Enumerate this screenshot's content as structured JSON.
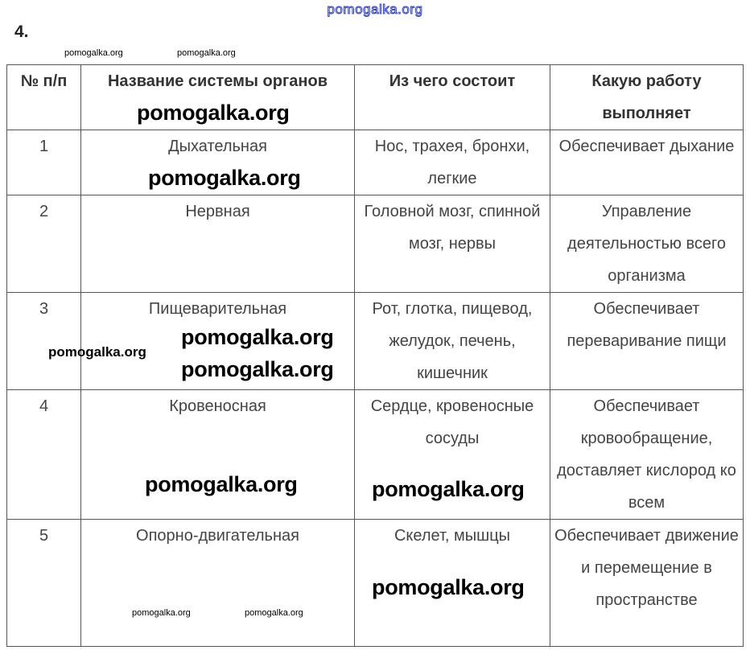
{
  "watermark_top": "pomogalka.org",
  "task_number": "4.",
  "watermark": "pomogalka.org",
  "table": {
    "headers": [
      "№ п/п",
      "Название системы органов",
      "Из чего состоит",
      "Какую работу выполняет"
    ],
    "rows": [
      [
        "1",
        "Дыхательная",
        "Нос, трахея, бронхи, легкие",
        "Обеспечивает дыхание"
      ],
      [
        "2",
        "Нервная",
        "Головной мозг, спинной мозг, нервы",
        "Управление деятельностью всего организма"
      ],
      [
        "3",
        "Пищеварительная",
        "Рот, глотка, пищевод, желудок, печень, кишечник",
        "Обеспечивает переваривание пищи"
      ],
      [
        "4",
        "Кровеносная",
        "Сердце, кровеносные сосуды",
        "Обеспечивает кровообращение, доставляет кислород ко всем"
      ],
      [
        "5",
        "Опорно-двигательная",
        "Скелет, мышцы",
        "Обеспечивает движение и перемещение в пространстве"
      ]
    ]
  }
}
